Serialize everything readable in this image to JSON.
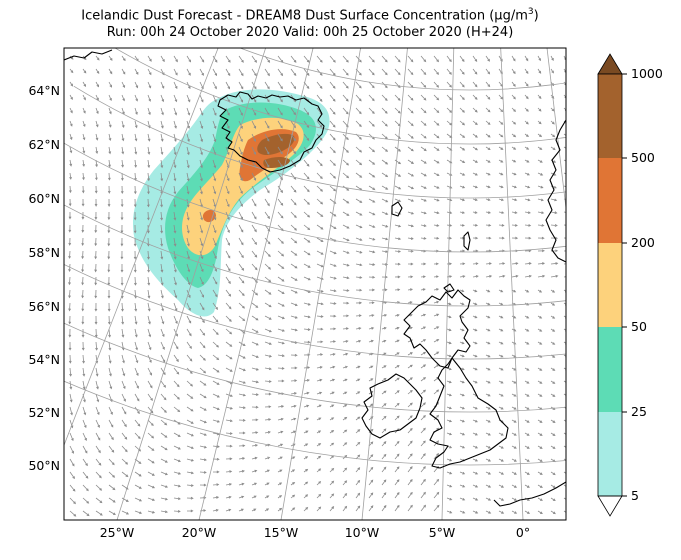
{
  "title": {
    "line1_prefix": "Icelandic Dust Forecast - DREAM8 Dust Surface Concentration (µg/m",
    "line1_sup": "3",
    "line1_suffix": ")",
    "line2": "Run: 00h 24 October 2020  Valid: 00h 25 October 2020 (H+24)"
  },
  "map": {
    "lat_labels": [
      "64°N",
      "62°N",
      "60°N",
      "58°N",
      "56°N",
      "54°N",
      "52°N",
      "50°N"
    ],
    "lon_labels": [
      "25°W",
      "20°W",
      "15°W",
      "10°W",
      "5°W",
      "0°"
    ]
  },
  "colorbar": {
    "levels": [
      "5",
      "25",
      "50",
      "200",
      "500",
      "1000"
    ],
    "colors": [
      "#a6ebe4",
      "#5ddcb5",
      "#fdd27c",
      "#e07535",
      "#a3622d"
    ],
    "extend_max_color": "#7a4a22"
  },
  "colors": {
    "grid": "#a0a0a0",
    "coast": "#000000",
    "arrow": "#8c8c8c",
    "dust_5": "#a6ebe4",
    "dust_25": "#5ddcb5",
    "dust_50": "#fdd27c",
    "dust_200": "#e07535",
    "dust_500": "#a3622d"
  }
}
